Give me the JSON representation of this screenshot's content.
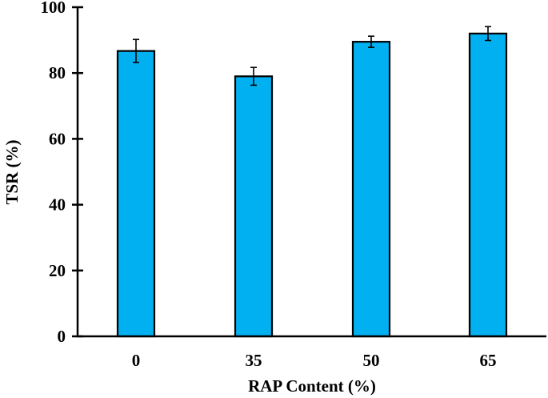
{
  "chart_data": {
    "type": "bar",
    "title": "",
    "xlabel": "RAP Content (%)",
    "ylabel": "TSR (%)",
    "categories": [
      "0",
      "35",
      "50",
      "65"
    ],
    "values": [
      86.7,
      79.0,
      89.5,
      92.0
    ],
    "error": [
      3.5,
      2.7,
      1.7,
      2.1
    ],
    "ylim": [
      0,
      100
    ],
    "yticks": [
      "0",
      "20",
      "40",
      "60",
      "80",
      "100"
    ],
    "grid": false,
    "legend": null,
    "colors": {
      "bar_fill": "#00B0F0",
      "bar_edge": "#000000",
      "axis": "#000000"
    }
  }
}
